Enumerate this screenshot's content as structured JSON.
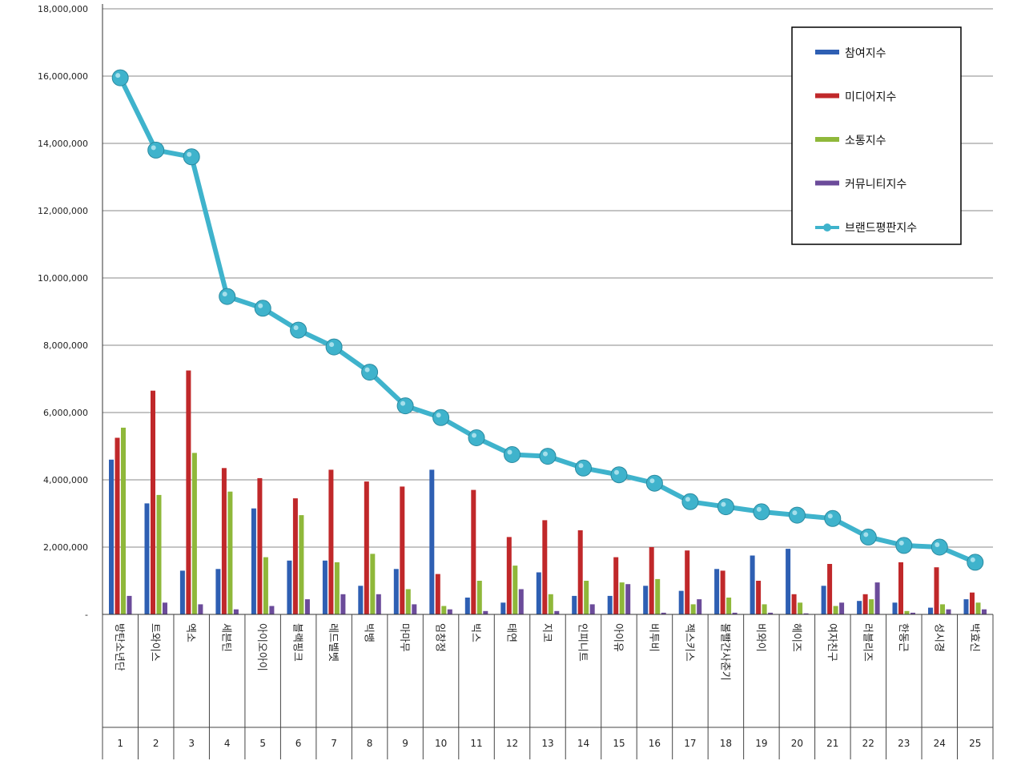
{
  "chart_data": {
    "type": "bar",
    "ylim": [
      0,
      18000000
    ],
    "yticks": [
      "-",
      "2,000,000",
      "4,000,000",
      "6,000,000",
      "8,000,000",
      "10,000,000",
      "12,000,000",
      "14,000,000",
      "16,000,000",
      "18,000,000"
    ],
    "grid": true,
    "legend_position": "top-right",
    "categories": [
      "방탄소년단",
      "트와이스",
      "엑소",
      "세븐틴",
      "아이오아이",
      "블랙핑크",
      "레드벨벳",
      "빅뱅",
      "마마무",
      "임창정",
      "빅스",
      "태연",
      "지코",
      "인피니트",
      "아이유",
      "비투비",
      "젝스키스",
      "볼빨간사춘기",
      "비와이",
      "헤이즈",
      "여자친구",
      "러블리즈",
      "한동근",
      "성시경",
      "박효신"
    ],
    "ranks": [
      "1",
      "2",
      "3",
      "4",
      "5",
      "6",
      "7",
      "8",
      "9",
      "10",
      "11",
      "12",
      "13",
      "14",
      "15",
      "16",
      "17",
      "18",
      "19",
      "20",
      "21",
      "22",
      "23",
      "24",
      "25"
    ],
    "series": [
      {
        "name": "참여지수",
        "kind": "bar",
        "color": "#2e5fb3",
        "values": [
          4600000,
          3300000,
          1300000,
          1350000,
          3150000,
          1600000,
          1600000,
          850000,
          1350000,
          4300000,
          500000,
          350000,
          1250000,
          550000,
          550000,
          850000,
          700000,
          1350000,
          1750000,
          1950000,
          850000,
          400000,
          350000,
          200000,
          450000
        ]
      },
      {
        "name": "미디어지수",
        "kind": "bar",
        "color": "#c0282a",
        "values": [
          5250000,
          6650000,
          7250000,
          4350000,
          4050000,
          3450000,
          4300000,
          3950000,
          3800000,
          1200000,
          3700000,
          2300000,
          2800000,
          2500000,
          1700000,
          2000000,
          1900000,
          1300000,
          1000000,
          600000,
          1500000,
          600000,
          1550000,
          1400000,
          650000
        ]
      },
      {
        "name": "소통지수",
        "kind": "bar",
        "color": "#8fb83a",
        "values": [
          5550000,
          3550000,
          4800000,
          3650000,
          1700000,
          2950000,
          1550000,
          1800000,
          750000,
          250000,
          1000000,
          1450000,
          600000,
          1000000,
          950000,
          1050000,
          300000,
          500000,
          300000,
          350000,
          250000,
          450000,
          100000,
          300000,
          350000
        ]
      },
      {
        "name": "커뮤니티지수",
        "kind": "bar",
        "color": "#6b4b9a",
        "values": [
          550000,
          350000,
          300000,
          150000,
          250000,
          450000,
          600000,
          600000,
          300000,
          150000,
          100000,
          750000,
          100000,
          300000,
          900000,
          50000,
          450000,
          50000,
          50000,
          30000,
          350000,
          950000,
          50000,
          150000,
          150000
        ]
      },
      {
        "name": "브랜드평판지수",
        "kind": "line",
        "color": "#3fb3cc",
        "values": [
          15950000,
          13800000,
          13600000,
          9450000,
          9100000,
          8450000,
          7950000,
          7200000,
          6200000,
          5850000,
          5250000,
          4750000,
          4700000,
          4350000,
          4150000,
          3900000,
          3350000,
          3200000,
          3050000,
          2950000,
          2850000,
          2300000,
          2050000,
          2000000,
          1550000
        ]
      }
    ]
  }
}
